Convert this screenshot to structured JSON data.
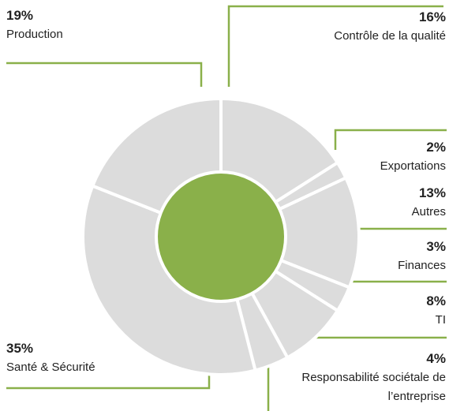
{
  "chart_data": {
    "type": "donut",
    "categories": [
      "Contrôle de la qualité",
      "Exportations",
      "Autres",
      "Finances",
      "TI",
      "Responsabilité sociétale de l’entreprise",
      "Santé & Sécurité",
      "Production"
    ],
    "values": [
      16,
      2,
      13,
      3,
      8,
      4,
      35,
      19
    ],
    "value_labels": [
      "16%",
      "2%",
      "13%",
      "3%",
      "8%",
      "4%",
      "35%",
      "19%"
    ],
    "color": "#dcdcdc",
    "center_color": "#8ab04a"
  }
}
